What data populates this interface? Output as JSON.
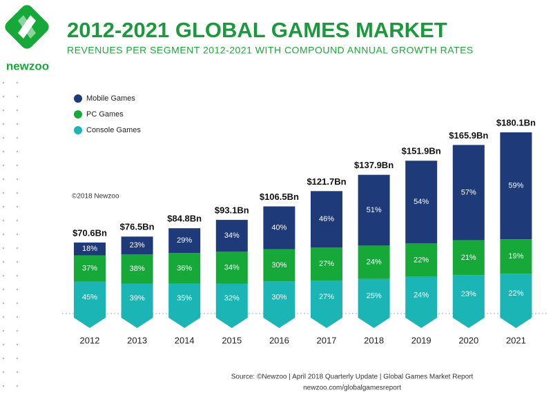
{
  "brand": "newzoo",
  "chart_data": {
    "type": "bar",
    "title": "2012-2021 GLOBAL GAMES MARKET",
    "subtitle": "REVENUES PER SEGMENT 2012-2021 WITH COMPOUND ANNUAL GROWTH RATES",
    "categories": [
      "2012",
      "2013",
      "2014",
      "2015",
      "2016",
      "2017",
      "2018",
      "2019",
      "2020",
      "2021"
    ],
    "totals": [
      70.6,
      76.5,
      84.8,
      93.1,
      106.5,
      121.7,
      137.9,
      151.9,
      165.9,
      180.1
    ],
    "total_labels": [
      "$70.6Bn",
      "$76.5Bn",
      "$84.8Bn",
      "$93.1Bn",
      "$106.5Bn",
      "$121.7Bn",
      "$137.9Bn",
      "$151.9Bn",
      "$165.9Bn",
      "$180.1Bn"
    ],
    "series": [
      {
        "name": "Mobile Games",
        "color": "#1f3a78",
        "values": [
          18,
          23,
          29,
          34,
          40,
          46,
          51,
          54,
          57,
          59
        ],
        "value_labels": [
          "18%",
          "23%",
          "29%",
          "34%",
          "40%",
          "46%",
          "51%",
          "54%",
          "57%",
          "59%"
        ]
      },
      {
        "name": "PC Games",
        "color": "#17a83a",
        "values": [
          37,
          38,
          36,
          34,
          30,
          27,
          24,
          22,
          21,
          19
        ],
        "value_labels": [
          "37%",
          "38%",
          "36%",
          "34%",
          "30%",
          "27%",
          "24%",
          "22%",
          "21%",
          "19%"
        ]
      },
      {
        "name": "Console Games",
        "color": "#1cb5b5",
        "values": [
          45,
          39,
          35,
          32,
          30,
          27,
          25,
          24,
          23,
          22
        ],
        "value_labels": [
          "45%",
          "39%",
          "35%",
          "32%",
          "30%",
          "27%",
          "25%",
          "24%",
          "23%",
          "22%"
        ]
      }
    ],
    "copyright": "©2018 Newzoo",
    "source": "Source: ©Newzoo | April 2018 Quarterly Update | Global Games Market Report",
    "source_url": "newzoo.com/globalgamesreport"
  }
}
